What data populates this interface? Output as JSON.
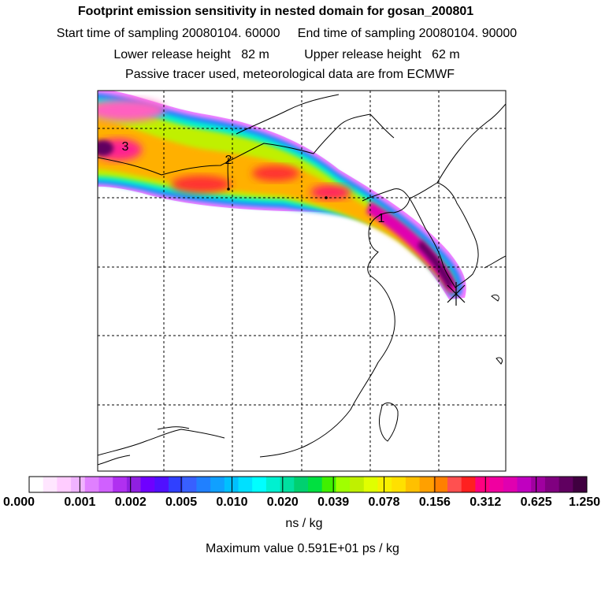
{
  "titles": {
    "line1": "Footprint emission sensitivity in nested domain for gosan_200801",
    "line2": "Start time of sampling 20080104. 60000     End time of sampling 20080104. 90000",
    "line3": "Lower release height   82 m          Upper release height   62 m",
    "line4": "Passive tracer used, meteorological data are from ECMWF"
  },
  "map": {
    "point_labels": [
      "3",
      "2",
      "1"
    ],
    "release_marker": "cross-icon"
  },
  "colorbar": {
    "labels": [
      "0.000",
      "0.001",
      "0.002",
      "0.005",
      "0.010",
      "0.020",
      "0.039",
      "0.078",
      "0.156",
      "0.312",
      "0.625",
      "1.250"
    ],
    "colors": [
      "#ffffff",
      "#ffe6ff",
      "#ffccff",
      "#f0b3ff",
      "#e080ff",
      "#d060ff",
      "#b030f0",
      "#9020e0",
      "#6f00ff",
      "#5010ff",
      "#3040ff",
      "#3860ff",
      "#2080ff",
      "#10a0ff",
      "#00c0ff",
      "#00e0ff",
      "#00ffff",
      "#00f0d0",
      "#00e0a0",
      "#00d070",
      "#00e040",
      "#40f000",
      "#a0ff00",
      "#c0f000",
      "#e0ff00",
      "#f8f000",
      "#ffe000",
      "#ffc000",
      "#ffa000",
      "#ff8000",
      "#ff5050",
      "#ff2020",
      "#ff0080",
      "#f000a0",
      "#e000b0",
      "#c000c0",
      "#a000a0",
      "#800080",
      "#600060",
      "#400040"
    ],
    "units": "ns / kg"
  },
  "max_value_text": "Maximum value  0.591E+01 ps / kg"
}
